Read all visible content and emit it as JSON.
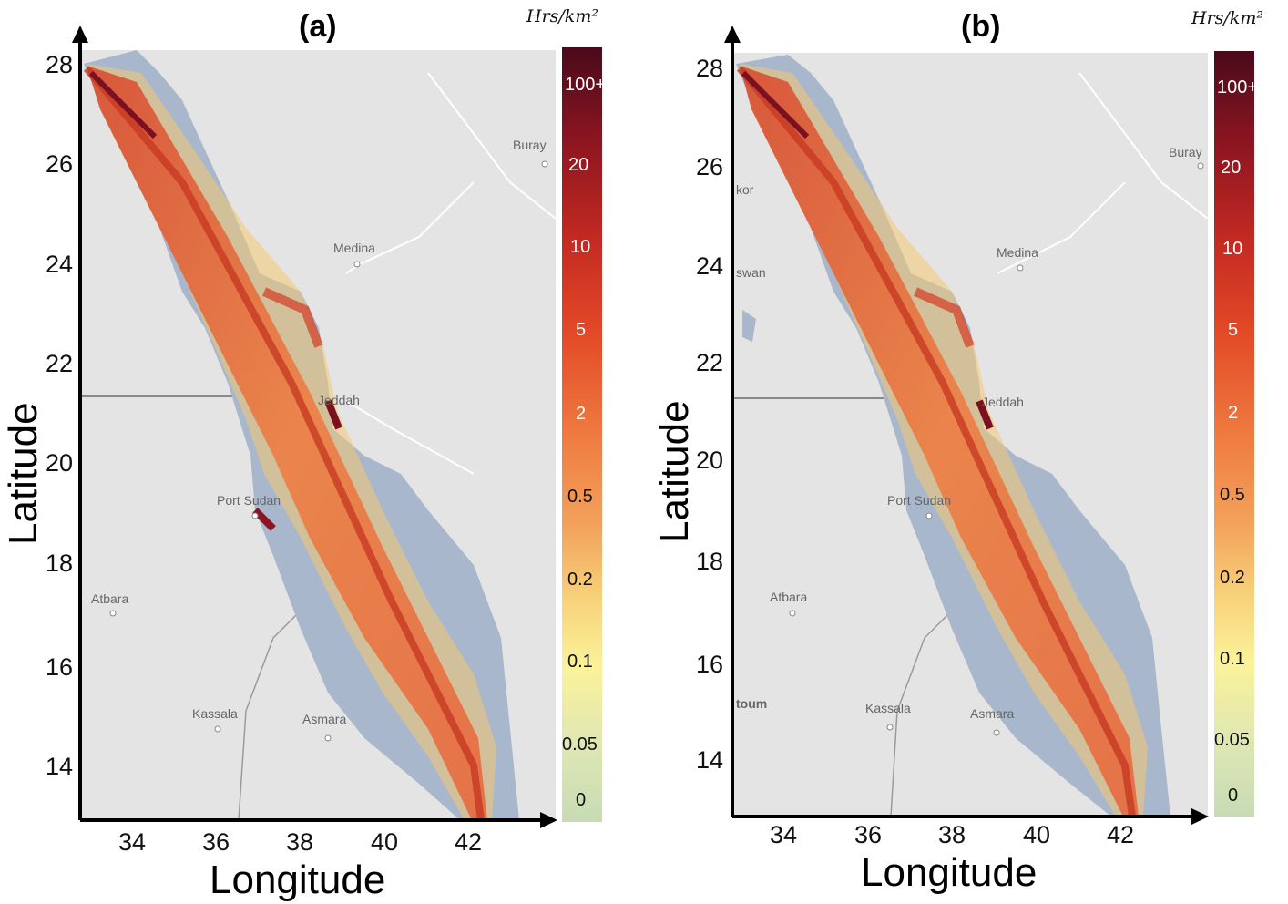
{
  "panels": [
    {
      "id": "a",
      "title": "(a)",
      "unit": "Hrs/km²",
      "xlabel": "Longitude",
      "ylabel": "Latitude",
      "xticks": [
        "34",
        "36",
        "38",
        "40",
        "42"
      ],
      "yticks": [
        "28",
        "26",
        "24",
        "22",
        "20",
        "18",
        "16",
        "14"
      ],
      "places": [
        "Buray",
        "Medina",
        "Jeddah",
        "Port Sudan",
        "Atbara",
        "Kassala",
        "Asmara"
      ],
      "colorbar_labels": [
        "100+",
        "20",
        "10",
        "5",
        "2",
        "0.5",
        "0.2",
        "0.1",
        "0.05",
        "0"
      ]
    },
    {
      "id": "b",
      "title": "(b)",
      "unit": "Hrs/km²",
      "xlabel": "Longitude",
      "ylabel": "Latitude",
      "xticks": [
        "34",
        "36",
        "38",
        "40",
        "42"
      ],
      "yticks": [
        "28",
        "26",
        "24",
        "22",
        "20",
        "18",
        "16",
        "14"
      ],
      "places": [
        "Buray",
        "Medina",
        "Jeddah",
        "Port Sudan",
        "Atbara",
        "Kassala",
        "Asmara",
        "swan",
        "kor",
        "toum"
      ],
      "colorbar_labels": [
        "100+",
        "20",
        "10",
        "5",
        "2",
        "0.5",
        "0.2",
        "0.1",
        "0.05",
        "0"
      ]
    }
  ],
  "colors": {
    "land": "#e4e4e4",
    "sea": "#a9b7cc",
    "colorbar_stops": [
      "#4a0a1a",
      "#8c1520",
      "#c42a22",
      "#e34a26",
      "#ef7a40",
      "#f3a35c",
      "#f7d17a",
      "#fbf29a",
      "#dfe7b3",
      "#c6dcb5"
    ]
  }
}
